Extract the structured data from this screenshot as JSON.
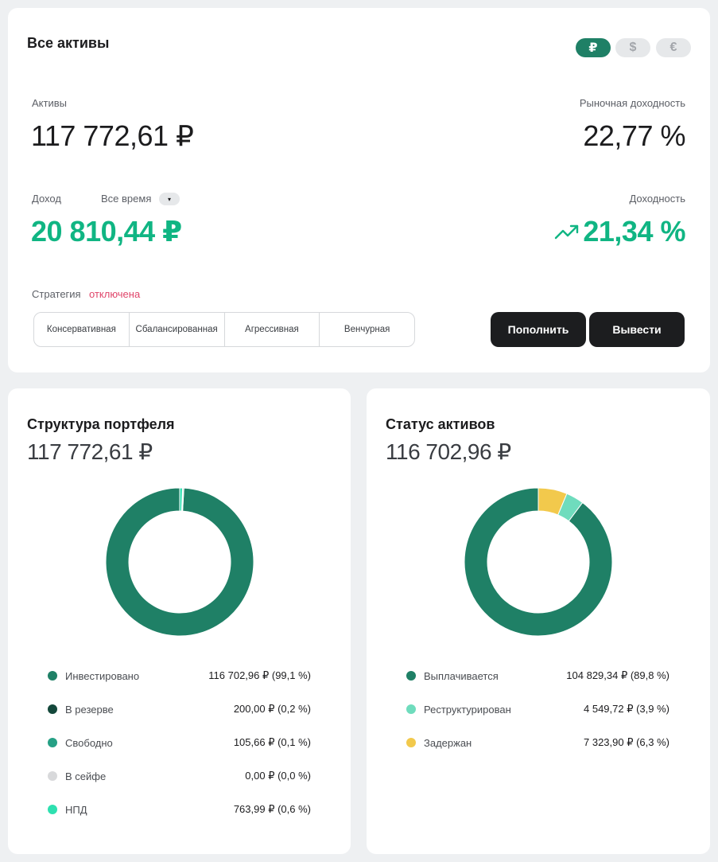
{
  "overview": {
    "title": "Все активы",
    "currencies": [
      {
        "symbol": "₽",
        "active": true
      },
      {
        "symbol": "$",
        "active": false
      },
      {
        "symbol": "€",
        "active": false
      }
    ],
    "assets_label": "Активы",
    "assets_value": "117 772,61 ₽",
    "market_yield_label": "Рыночная доходность",
    "market_yield_value": "22,77 %",
    "income_label": "Доход",
    "period_label": "Все время",
    "period_caret": "▾",
    "income_value": "20 810,44 ₽",
    "yield_label": "Доходность",
    "yield_value": "21,34 %",
    "strategy_label": "Стратегия",
    "strategy_status": "отключена",
    "strategies": [
      "Консервативная",
      "Сбалансированная",
      "Агрессивная",
      "Венчурная"
    ],
    "deposit_button": "Пополнить",
    "withdraw_button": "Вывести",
    "accent_color": "#10b583"
  },
  "portfolio": {
    "title": "Структура портфеля",
    "total": "117 772,61 ₽",
    "items": [
      {
        "name": "Инвестировано",
        "value": "116 702,96 ₽ (99,1 %)",
        "share": 99.1,
        "color": "#1f8066"
      },
      {
        "name": "В резерве",
        "value": "200,00 ₽ (0,2 %)",
        "share": 0.2,
        "color": "#14483b"
      },
      {
        "name": "Свободно",
        "value": "105,66 ₽ (0,1 %)",
        "share": 0.1,
        "color": "#26a085"
      },
      {
        "name": "В сейфе",
        "value": "0,00 ₽ (0,0 %)",
        "share": 0.0,
        "color": "#d8d9db"
      },
      {
        "name": "НПД",
        "value": "763,99 ₽ (0,6 %)",
        "share": 0.6,
        "color": "#2ee0b0"
      }
    ]
  },
  "status": {
    "title": "Статус активов",
    "total": "116 702,96 ₽",
    "items": [
      {
        "name": "Выплачивается",
        "value": "104 829,34 ₽ (89,8 %)",
        "share": 89.8,
        "color": "#1f8066"
      },
      {
        "name": "Реструктурирован",
        "value": "4 549,72 ₽ (3,9 %)",
        "share": 3.9,
        "color": "#6fdcbd"
      },
      {
        "name": "Задержан",
        "value": "7 323,90 ₽ (6,3 %)",
        "share": 6.3,
        "color": "#f2c94c"
      }
    ]
  }
}
